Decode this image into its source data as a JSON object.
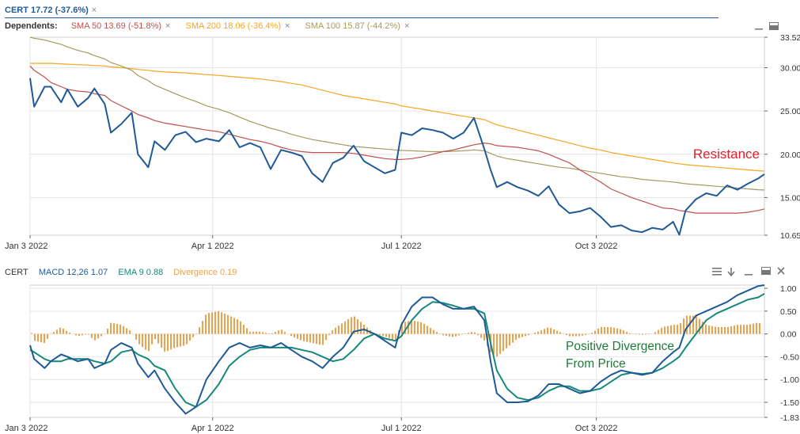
{
  "top_header": {
    "symbol_label": "CERT 17.72 (-37.6%)",
    "dependents_label": "Dependents:",
    "sma50_label": "SMA 50 13.69 (-51.8%)",
    "sma200_label": "SMA 200 18.06 (-36.4%)",
    "sma100_label": "SMA 100 15.87 (-44.2%)",
    "close_glyph": "×"
  },
  "bottom_header": {
    "symbol_label": "CERT",
    "macd_label": "MACD 12,26 1.07",
    "ema_label": "EMA 9 0.88",
    "divergence_label": "Divergence 0.19"
  },
  "colors": {
    "price": "#1f5a96",
    "sma50": "#c0504d",
    "sma200": "#f5a623",
    "sma100": "#a59b5e",
    "macd": "#1f5a96",
    "ema": "#15897a",
    "divergence": "#f0a04b",
    "grid": "#e6e6e6",
    "annotation_red": "#e0202a",
    "annotation_green": "#1f7a3a"
  },
  "chart_data": [
    {
      "type": "line",
      "x": [
        "2022-01-03",
        "2022-01-05",
        "2022-01-10",
        "2022-01-13",
        "2022-01-18",
        "2022-01-21",
        "2022-01-26",
        "2022-01-31",
        "2022-02-03",
        "2022-02-08",
        "2022-02-11",
        "2022-02-16",
        "2022-02-21",
        "2022-02-24",
        "2022-03-01",
        "2022-03-04",
        "2022-03-09",
        "2022-03-14",
        "2022-03-19",
        "2022-03-24",
        "2022-03-29",
        "2022-04-04",
        "2022-04-09",
        "2022-04-14",
        "2022-04-19",
        "2022-04-24",
        "2022-04-29",
        "2022-05-04",
        "2022-05-09",
        "2022-05-14",
        "2022-05-19",
        "2022-05-24",
        "2022-05-29",
        "2022-06-03",
        "2022-06-08",
        "2022-06-13",
        "2022-06-18",
        "2022-06-23",
        "2022-06-28",
        "2022-07-01",
        "2022-07-06",
        "2022-07-11",
        "2022-07-16",
        "2022-07-21",
        "2022-07-26",
        "2022-07-31",
        "2022-08-05",
        "2022-08-10",
        "2022-08-13",
        "2022-08-16",
        "2022-08-21",
        "2022-08-26",
        "2022-08-31",
        "2022-09-05",
        "2022-09-10",
        "2022-09-15",
        "2022-09-20",
        "2022-09-25",
        "2022-09-30",
        "2022-10-05",
        "2022-10-10",
        "2022-10-15",
        "2022-10-20",
        "2022-10-25",
        "2022-10-30",
        "2022-11-04",
        "2022-11-09",
        "2022-11-12",
        "2022-11-15",
        "2022-11-20",
        "2022-11-25",
        "2022-11-30",
        "2022-12-05",
        "2022-12-10",
        "2022-12-15",
        "2022-12-20",
        "2022-12-23"
      ],
      "series": [
        {
          "name": "CERT",
          "values": [
            28.8,
            25.5,
            27.8,
            27.8,
            26.0,
            27.5,
            25.5,
            26.5,
            27.6,
            25.8,
            22.5,
            23.5,
            24.8,
            20.0,
            18.5,
            21.5,
            20.5,
            22.2,
            22.6,
            21.4,
            21.8,
            21.5,
            22.8,
            20.8,
            21.3,
            20.8,
            18.3,
            20.5,
            20.2,
            19.8,
            17.8,
            16.8,
            19.0,
            19.6,
            21.0,
            19.2,
            18.5,
            17.8,
            18.2,
            22.5,
            22.2,
            23.0,
            22.8,
            22.5,
            21.8,
            22.5,
            24.2,
            20.6,
            18.2,
            16.2,
            16.8,
            16.2,
            15.8,
            15.2,
            16.3,
            14.2,
            13.2,
            13.4,
            13.8,
            12.8,
            11.6,
            11.8,
            11.2,
            11.0,
            11.5,
            11.3,
            12.2,
            10.7,
            13.5,
            14.8,
            15.5,
            15.2,
            16.4,
            15.9,
            16.6,
            17.2,
            17.7
          ]
        },
        {
          "name": "SMA 50",
          "values": [
            30.2,
            29.7,
            28.9,
            28.3,
            27.8,
            27.5,
            27.3,
            27.2,
            27.0,
            26.8,
            26.2,
            25.6,
            25.0,
            24.6,
            24.2,
            23.9,
            23.6,
            23.4,
            23.2,
            23.0,
            22.8,
            22.6,
            22.3,
            22.0,
            21.7,
            21.5,
            21.2,
            20.8,
            20.5,
            20.3,
            20.2,
            20.2,
            20.2,
            20.2,
            20.1,
            19.9,
            19.7,
            19.5,
            19.4,
            19.4,
            19.5,
            19.7,
            20.0,
            20.3,
            20.5,
            20.8,
            21.1,
            21.3,
            21.2,
            21.0,
            20.9,
            20.8,
            20.6,
            20.4,
            20.0,
            19.5,
            19.0,
            18.2,
            17.5,
            16.8,
            16.0,
            15.5,
            15.0,
            14.6,
            14.2,
            13.8,
            13.7,
            13.5,
            13.4,
            13.2,
            13.2,
            13.2,
            13.2,
            13.2,
            13.3,
            13.5,
            13.69
          ]
        },
        {
          "name": "SMA 200",
          "values": [
            30.5,
            30.5,
            30.5,
            30.5,
            30.45,
            30.4,
            30.35,
            30.3,
            30.25,
            30.2,
            30.1,
            30.0,
            29.9,
            29.8,
            29.7,
            29.6,
            29.5,
            29.45,
            29.4,
            29.3,
            29.2,
            29.1,
            29.0,
            28.9,
            28.8,
            28.7,
            28.55,
            28.4,
            28.2,
            28.0,
            27.7,
            27.4,
            27.1,
            26.8,
            26.6,
            26.4,
            26.2,
            26.0,
            25.8,
            25.6,
            25.4,
            25.2,
            25.0,
            24.8,
            24.6,
            24.4,
            24.2,
            24.0,
            23.7,
            23.4,
            23.1,
            22.8,
            22.5,
            22.2,
            21.9,
            21.6,
            21.3,
            21.0,
            20.7,
            20.5,
            20.2,
            20.0,
            19.8,
            19.6,
            19.4,
            19.2,
            19.0,
            18.9,
            18.8,
            18.7,
            18.6,
            18.5,
            18.4,
            18.3,
            18.2,
            18.1,
            18.06
          ]
        },
        {
          "name": "SMA 100",
          "values": [
            33.5,
            33.4,
            33.2,
            33.0,
            32.7,
            32.4,
            32.0,
            31.7,
            31.4,
            31.0,
            30.6,
            30.2,
            29.7,
            29.1,
            28.5,
            28.0,
            27.5,
            27.0,
            26.5,
            26.1,
            25.6,
            25.2,
            24.8,
            24.3,
            23.8,
            23.4,
            23.0,
            22.7,
            22.3,
            22.0,
            21.7,
            21.5,
            21.3,
            21.1,
            20.9,
            20.8,
            20.7,
            20.6,
            20.5,
            20.45,
            20.4,
            20.35,
            20.3,
            20.3,
            20.35,
            20.4,
            20.5,
            20.4,
            20.1,
            19.8,
            19.5,
            19.3,
            19.1,
            18.9,
            18.7,
            18.5,
            18.4,
            18.2,
            18.0,
            17.8,
            17.6,
            17.4,
            17.3,
            17.1,
            17.0,
            16.9,
            16.8,
            16.7,
            16.6,
            16.5,
            16.4,
            16.3,
            16.2,
            16.1,
            16.0,
            15.9,
            15.87
          ]
        }
      ],
      "x_ticks": [
        "Jan 3 2022",
        "Apr 1 2022",
        "Jul 1 2022",
        "Oct 3 2022"
      ],
      "y_ticks": [
        "33.52",
        "30.00",
        "25.00",
        "20.00",
        "15.00",
        "10.65"
      ],
      "ylim": [
        10.65,
        33.52
      ],
      "annotation": "Resistance"
    },
    {
      "type": "line",
      "x": [
        "2022-01-03",
        "2022-01-05",
        "2022-01-10",
        "2022-01-13",
        "2022-01-18",
        "2022-01-21",
        "2022-01-26",
        "2022-01-31",
        "2022-02-03",
        "2022-02-08",
        "2022-02-11",
        "2022-02-16",
        "2022-02-21",
        "2022-02-24",
        "2022-03-01",
        "2022-03-04",
        "2022-03-09",
        "2022-03-14",
        "2022-03-19",
        "2022-03-24",
        "2022-03-29",
        "2022-04-04",
        "2022-04-09",
        "2022-04-14",
        "2022-04-19",
        "2022-04-24",
        "2022-04-29",
        "2022-05-04",
        "2022-05-09",
        "2022-05-14",
        "2022-05-19",
        "2022-05-24",
        "2022-05-29",
        "2022-06-03",
        "2022-06-08",
        "2022-06-13",
        "2022-06-18",
        "2022-06-23",
        "2022-06-28",
        "2022-07-01",
        "2022-07-06",
        "2022-07-11",
        "2022-07-16",
        "2022-07-21",
        "2022-07-26",
        "2022-07-31",
        "2022-08-05",
        "2022-08-10",
        "2022-08-13",
        "2022-08-16",
        "2022-08-21",
        "2022-08-26",
        "2022-08-31",
        "2022-09-05",
        "2022-09-10",
        "2022-09-15",
        "2022-09-20",
        "2022-09-25",
        "2022-09-30",
        "2022-10-05",
        "2022-10-10",
        "2022-10-15",
        "2022-10-20",
        "2022-10-25",
        "2022-10-30",
        "2022-11-04",
        "2022-11-09",
        "2022-11-12",
        "2022-11-15",
        "2022-11-20",
        "2022-11-25",
        "2022-11-30",
        "2022-12-05",
        "2022-12-10",
        "2022-12-15",
        "2022-12-20",
        "2022-12-23"
      ],
      "series": [
        {
          "name": "MACD 12,26",
          "values": [
            -0.25,
            -0.55,
            -0.75,
            -0.6,
            -0.45,
            -0.5,
            -0.6,
            -0.55,
            -0.75,
            -0.65,
            -0.35,
            -0.2,
            -0.3,
            -0.65,
            -0.95,
            -0.8,
            -1.2,
            -1.5,
            -1.75,
            -1.6,
            -1.0,
            -0.6,
            -0.3,
            -0.2,
            -0.3,
            -0.25,
            -0.3,
            -0.2,
            -0.35,
            -0.5,
            -0.6,
            -0.75,
            -0.5,
            -0.3,
            0.05,
            0.1,
            0.0,
            -0.15,
            -0.3,
            0.2,
            0.6,
            0.8,
            0.8,
            0.65,
            0.55,
            0.55,
            0.6,
            0.3,
            -0.6,
            -1.3,
            -1.5,
            -1.5,
            -1.48,
            -1.35,
            -1.1,
            -1.1,
            -1.2,
            -1.3,
            -1.25,
            -1.05,
            -0.9,
            -0.8,
            -0.85,
            -0.9,
            -0.85,
            -0.6,
            -0.4,
            -0.3,
            0.1,
            0.4,
            0.5,
            0.6,
            0.7,
            0.85,
            0.95,
            1.05,
            1.07
          ]
        },
        {
          "name": "EMA 9",
          "values": [
            -0.35,
            -0.4,
            -0.55,
            -0.6,
            -0.6,
            -0.55,
            -0.55,
            -0.55,
            -0.6,
            -0.65,
            -0.6,
            -0.4,
            -0.35,
            -0.45,
            -0.55,
            -0.7,
            -0.8,
            -1.2,
            -1.5,
            -1.6,
            -1.45,
            -1.1,
            -0.7,
            -0.5,
            -0.35,
            -0.3,
            -0.3,
            -0.3,
            -0.3,
            -0.35,
            -0.4,
            -0.5,
            -0.6,
            -0.55,
            -0.35,
            -0.1,
            0.0,
            -0.1,
            -0.15,
            -0.05,
            0.3,
            0.55,
            0.7,
            0.68,
            0.62,
            0.55,
            0.55,
            0.45,
            -0.2,
            -0.8,
            -1.2,
            -1.4,
            -1.45,
            -1.4,
            -1.25,
            -1.15,
            -1.15,
            -1.25,
            -1.25,
            -1.2,
            -1.05,
            -0.9,
            -0.85,
            -0.88,
            -0.85,
            -0.75,
            -0.6,
            -0.5,
            -0.3,
            0.0,
            0.3,
            0.45,
            0.55,
            0.65,
            0.75,
            0.8,
            0.88
          ]
        },
        {
          "name": "Divergence",
          "values": [
            0.12,
            -0.15,
            -0.2,
            0.0,
            0.15,
            0.05,
            -0.05,
            0.0,
            -0.15,
            0.0,
            0.25,
            0.2,
            0.05,
            -0.2,
            -0.4,
            -0.1,
            -0.4,
            -0.3,
            -0.25,
            0.0,
            0.45,
            0.5,
            0.4,
            0.3,
            0.05,
            0.05,
            0.0,
            0.1,
            -0.05,
            -0.15,
            -0.2,
            -0.25,
            0.1,
            0.25,
            0.4,
            0.2,
            0.0,
            -0.05,
            -0.15,
            0.25,
            0.3,
            0.25,
            0.1,
            -0.03,
            -0.07,
            0.0,
            0.05,
            -0.15,
            -0.4,
            -0.5,
            -0.3,
            -0.1,
            -0.03,
            0.05,
            0.15,
            0.05,
            -0.05,
            -0.05,
            0.0,
            0.15,
            0.15,
            0.1,
            0.0,
            -0.02,
            0.0,
            0.15,
            0.2,
            0.2,
            0.4,
            0.4,
            0.2,
            0.15,
            0.15,
            0.2,
            0.2,
            0.25,
            0.19
          ]
        }
      ],
      "x_ticks": [
        "Jan 3 2022",
        "Apr 1 2022",
        "Jul 1 2022",
        "Oct 3 2022"
      ],
      "y_ticks": [
        "1.00",
        "0.50",
        "0.00",
        "-0.50",
        "-1.00",
        "-1.50",
        "-1.83"
      ],
      "ylim": [
        -1.83,
        1.07
      ],
      "annotation": [
        "Positive Divergence",
        "From Price"
      ]
    }
  ]
}
